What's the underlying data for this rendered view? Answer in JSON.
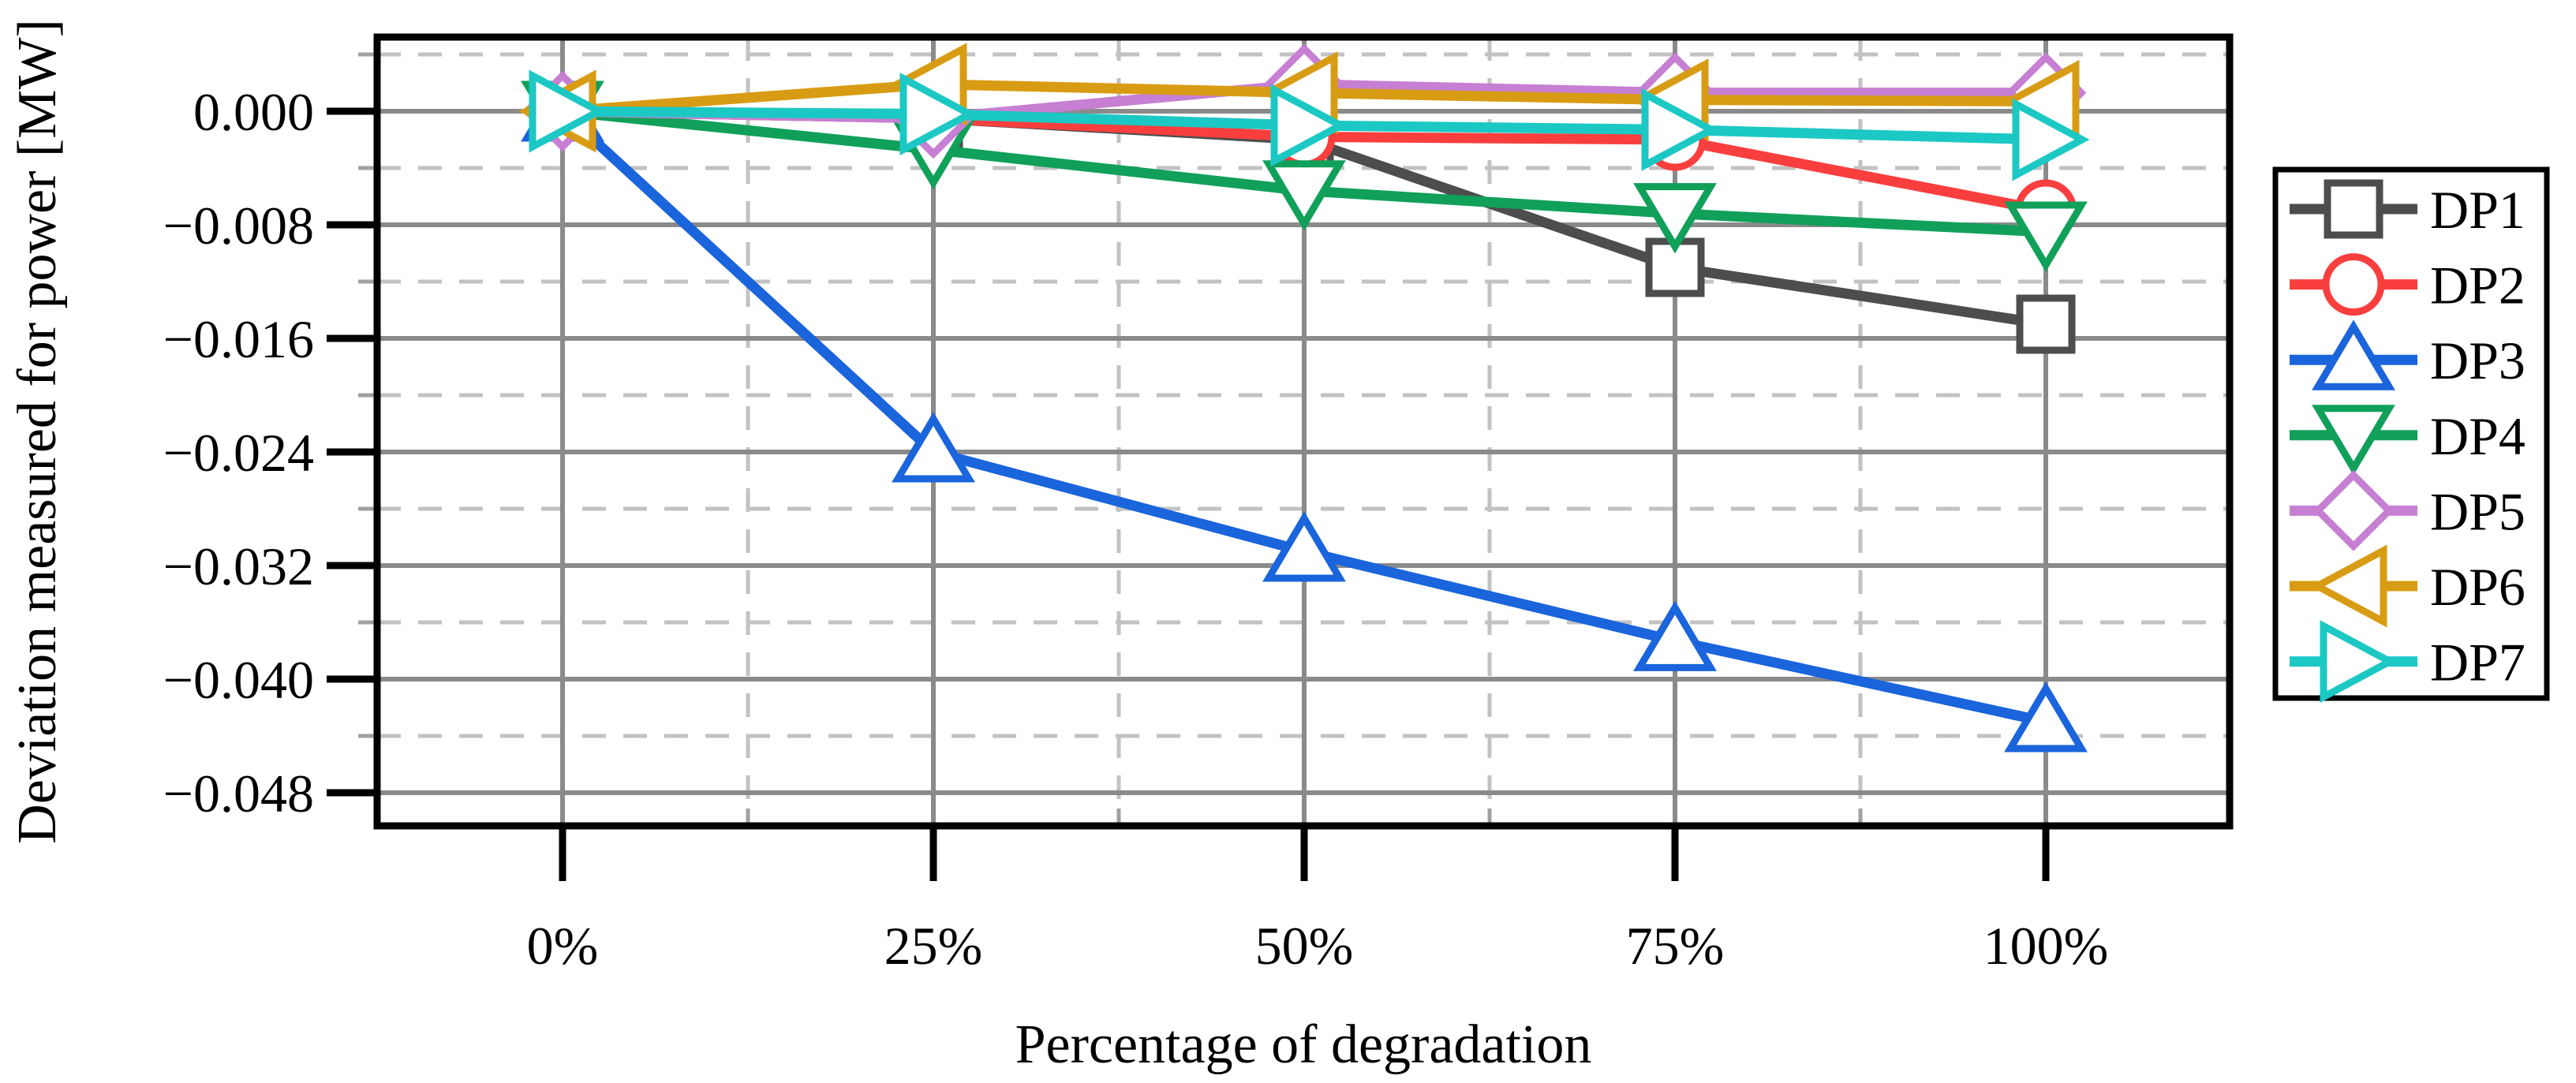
{
  "figure": {
    "xlabel": "Percentage of degradation",
    "ylabel": "Deviation measured for power [MW]"
  },
  "chart_data": {
    "type": "line",
    "title": "",
    "xlabel": "Percentage of degradation",
    "ylabel": "Deviation measured for power [MW]",
    "x": [
      0,
      25,
      50,
      75,
      100
    ],
    "x_tick_labels": [
      "0%",
      "25%",
      "50%",
      "75%",
      "100%"
    ],
    "y_ticks": [
      0.0,
      -0.008,
      -0.016,
      -0.024,
      -0.032,
      -0.04,
      -0.048
    ],
    "y_tick_labels": [
      "0.000",
      "−0.008",
      "−0.016",
      "−0.024",
      "−0.032",
      "−0.040",
      "−0.048"
    ],
    "y_minor_ticks": [
      0.004,
      -0.004,
      -0.012,
      -0.02,
      -0.028,
      -0.036,
      -0.044
    ],
    "x_minor_ticks": [
      12.5,
      37.5,
      62.5,
      87.5
    ],
    "xlim": [
      -12.5,
      112.5
    ],
    "ylim": [
      -0.0503,
      0.0052
    ],
    "grid": {
      "major": "solid gray",
      "minor": "dashed light gray"
    },
    "legend_position": "outside-right",
    "series": [
      {
        "name": "DP1",
        "color": "#4d4d4d",
        "marker": "square",
        "values": [
          0,
          -0.0005,
          -0.002,
          -0.011,
          -0.015
        ]
      },
      {
        "name": "DP2",
        "color": "#f93e3e",
        "marker": "circle",
        "values": [
          0,
          -0.0005,
          -0.0018,
          -0.002,
          -0.007
        ]
      },
      {
        "name": "DP3",
        "color": "#1a64dc",
        "marker": "triangle-up",
        "values": [
          0,
          -0.024,
          -0.031,
          -0.0373,
          -0.043
        ]
      },
      {
        "name": "DP4",
        "color": "#10a05a",
        "marker": "triangle-down",
        "values": [
          0,
          -0.0027,
          -0.0056,
          -0.0072,
          -0.0085
        ]
      },
      {
        "name": "DP5",
        "color": "#c67fd3",
        "marker": "diamond",
        "values": [
          0,
          -0.0005,
          0.0019,
          0.0013,
          0.0013
        ]
      },
      {
        "name": "DP6",
        "color": "#d89c14",
        "marker": "triangle-left",
        "values": [
          0,
          0.0019,
          0.0013,
          0.0008,
          0.0007
        ]
      },
      {
        "name": "DP7",
        "color": "#1cc8c4",
        "marker": "triangle-right",
        "values": [
          0,
          -0.0002,
          -0.001,
          -0.0013,
          -0.002
        ]
      }
    ]
  },
  "legend": {
    "items": [
      "DP1",
      "DP2",
      "DP3",
      "DP4",
      "DP5",
      "DP6",
      "DP7"
    ]
  },
  "style_colors": {
    "major_grid": "#8a8a8a",
    "minor_grid": "#c2c2c2",
    "spine": "#000000",
    "minor_tick": "#a0a0a0"
  }
}
